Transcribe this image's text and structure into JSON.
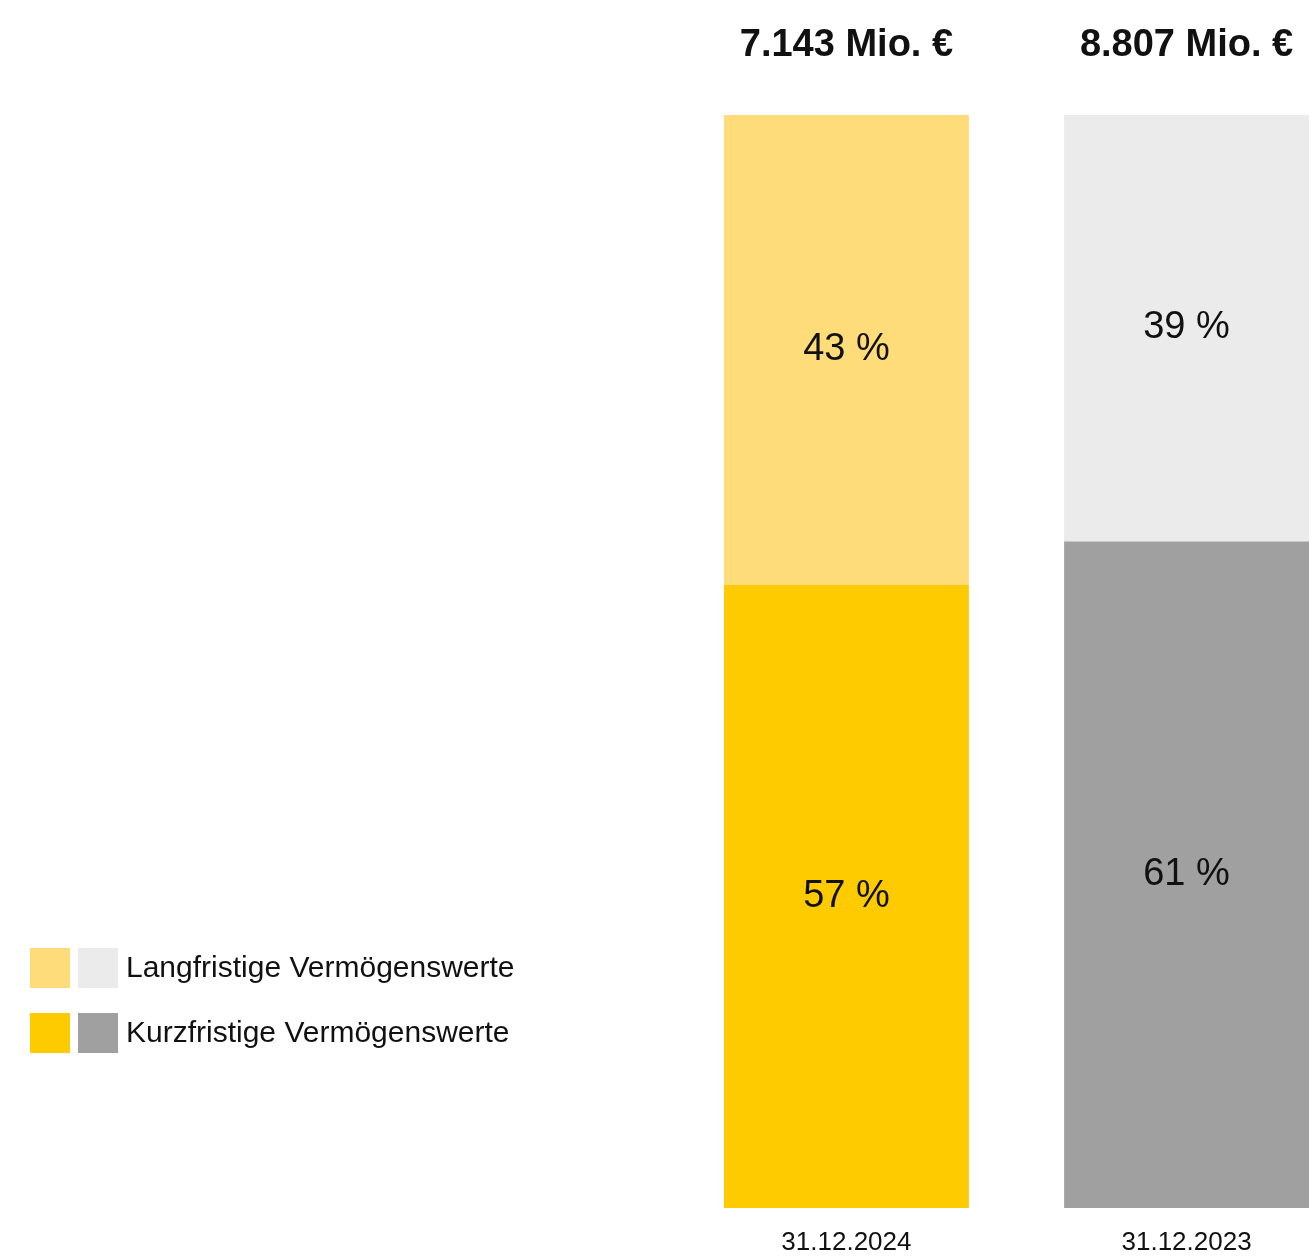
{
  "chart_data": {
    "type": "bar",
    "stacked": true,
    "categories": [
      "31.12.2024",
      "31.12.2023"
    ],
    "series": [
      {
        "name": "Kurzfristige Vermögenswerte",
        "colors": [
          "#fecb00",
          "#a0a0a0"
        ],
        "values": [
          57,
          61
        ],
        "value_labels": [
          "57 %",
          "61 %"
        ]
      },
      {
        "name": "Langfristige Vermögenswerte",
        "colors": [
          "#fedc7a",
          "#ebebeb"
        ],
        "values": [
          43,
          39
        ],
        "value_labels": [
          "43 %",
          "39 %"
        ]
      }
    ],
    "annotations": [
      {
        "text": "7.143 Mio. €",
        "x": "31.12.2024",
        "y": 100
      },
      {
        "text": "8.807 Mio. €",
        "x": "31.12.2023",
        "y": 100
      }
    ],
    "legend": "left"
  }
}
